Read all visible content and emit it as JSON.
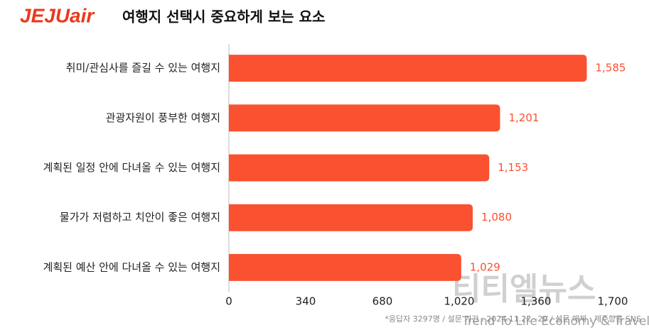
{
  "brand": "JEJUair",
  "footnote": "*응답자 3297명 / 설문 기간 : 2024.11.22~29 / 설문 매체 : 제주항공 SNS",
  "watermark": {
    "title": "티티엘뉴스",
    "subtitle": "Trend To Life Economy & Travel"
  },
  "chart_data": {
    "type": "bar",
    "orientation": "horizontal",
    "title": "여행지 선택시 중요하게 보는 요소",
    "categories": [
      "취미/관심사를 즐길 수 있는 여행지",
      "관광자원이 풍부한 여행지",
      "계획된 일정 안에 다녀올 수 있는 여행지",
      "물가가 저렴하고 치안이 좋은 여행지",
      "계획된 예산 안에 다녀올 수 있는 여행지"
    ],
    "values": [
      1585,
      1201,
      1153,
      1080,
      1029
    ],
    "value_labels": [
      "1,585",
      "1,201",
      "1,153",
      "1,080",
      "1,029"
    ],
    "color": "#fa5130",
    "xlim": [
      0,
      1700
    ],
    "xticks": [
      0,
      340,
      680,
      {
        "value": 1020,
        "label": "1,020"
      },
      {
        "value": 1360,
        "label": "1,360"
      },
      {
        "value": 1700,
        "label": "1,700"
      }
    ],
    "grid": false
  }
}
